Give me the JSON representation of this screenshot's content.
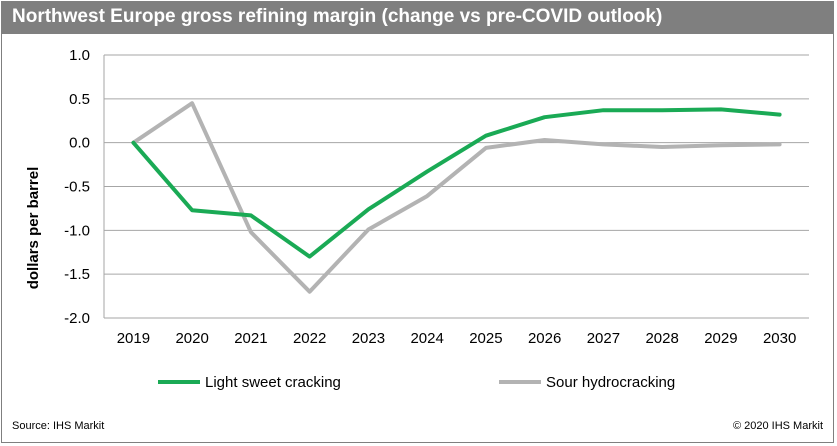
{
  "title": "Northwest Europe gross refining margin (change vs pre-COVID outlook)",
  "source": "Source: IHS Markit",
  "copyright": "© 2020 IHS Markit",
  "colors": {
    "title_bg": "#7f7f7f",
    "grid": "#a6a6a6"
  },
  "chart_data": {
    "type": "line",
    "title": "Northwest Europe gross refining margin (change vs pre-COVID outlook)",
    "ylabel": "dollars per barrel",
    "xlabel": "",
    "x": [
      "2019",
      "2020",
      "2021",
      "2022",
      "2023",
      "2024",
      "2025",
      "2026",
      "2027",
      "2028",
      "2029",
      "2030"
    ],
    "ylim": [
      -2.0,
      1.0
    ],
    "yticks": [
      "1.0",
      "0.5",
      "0.0",
      "-0.5",
      "-1.0",
      "-1.5",
      "-2.0"
    ],
    "ytick_values": [
      1.0,
      0.5,
      0.0,
      -0.5,
      -1.0,
      -1.5,
      -2.0
    ],
    "grid": true,
    "legend_position": "bottom",
    "series": [
      {
        "name": "Light sweet cracking",
        "color": "#1aaa55",
        "values": [
          0.0,
          -0.77,
          -0.83,
          -1.3,
          -0.76,
          -0.33,
          0.08,
          0.29,
          0.37,
          0.37,
          0.38,
          0.32
        ]
      },
      {
        "name": "Sour hydrocracking",
        "color": "#b3b3b3",
        "values": [
          0.0,
          0.45,
          -1.02,
          -1.7,
          -0.99,
          -0.61,
          -0.06,
          0.03,
          -0.02,
          -0.05,
          -0.03,
          -0.02
        ]
      }
    ]
  }
}
